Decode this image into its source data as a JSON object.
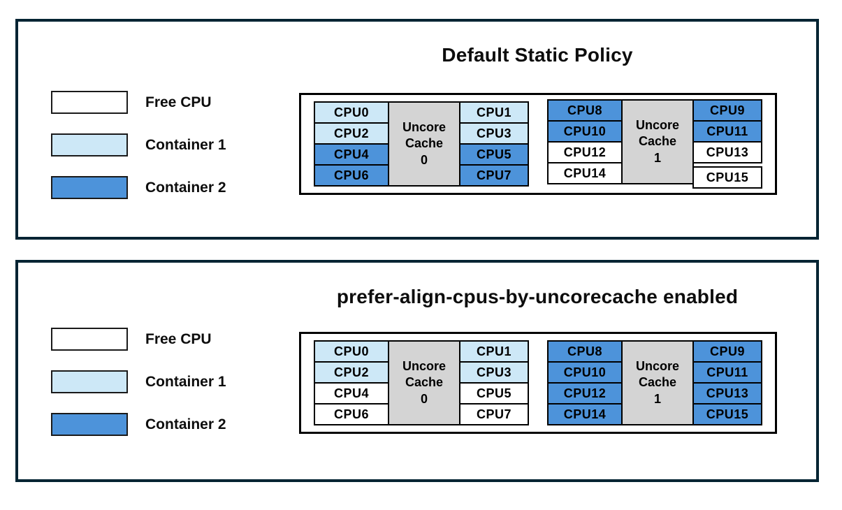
{
  "colors": {
    "free_cpu": "#ffffff",
    "container1": "#cde8f7",
    "container2": "#4d93da",
    "uncore_cache_fill": "#d4d4d4",
    "panel_border": "#042433",
    "cell_border": "#000000"
  },
  "legend": {
    "items": [
      {
        "label": "Free CPU",
        "color": "#ffffff"
      },
      {
        "label": "Container 1",
        "color": "#cde8f7"
      },
      {
        "label": "Container 2",
        "color": "#4d93da"
      }
    ]
  },
  "panels": [
    {
      "title": "Default Static Policy",
      "groups": [
        {
          "cache_label": [
            "Uncore",
            "Cache",
            "0"
          ],
          "left": [
            {
              "label": "CPU0",
              "state": "container-1",
              "color": "#cde8f7"
            },
            {
              "label": "CPU2",
              "state": "container-1",
              "color": "#cde8f7"
            },
            {
              "label": "CPU4",
              "state": "container-2",
              "color": "#4d93da"
            },
            {
              "label": "CPU6",
              "state": "container-2",
              "color": "#4d93da"
            }
          ],
          "right": [
            {
              "label": "CPU1",
              "state": "container-1",
              "color": "#cde8f7"
            },
            {
              "label": "CPU3",
              "state": "container-1",
              "color": "#cde8f7"
            },
            {
              "label": "CPU5",
              "state": "container-2",
              "color": "#4d93da"
            },
            {
              "label": "CPU7",
              "state": "container-2",
              "color": "#4d93da"
            }
          ]
        },
        {
          "cache_label": [
            "Uncore",
            "Cache",
            "1"
          ],
          "left": [
            {
              "label": "CPU8",
              "state": "container-2",
              "color": "#4d93da"
            },
            {
              "label": "CPU10",
              "state": "container-2",
              "color": "#4d93da"
            },
            {
              "label": "CPU12",
              "state": "free",
              "color": "#ffffff"
            },
            {
              "label": "CPU14",
              "state": "free",
              "color": "#ffffff"
            }
          ],
          "right": [
            {
              "label": "CPU9",
              "state": "container-2",
              "color": "#4d93da"
            },
            {
              "label": "CPU11",
              "state": "container-2",
              "color": "#4d93da"
            },
            {
              "label": "CPU13",
              "state": "free",
              "color": "#ffffff"
            },
            {
              "label": "CPU15",
              "state": "free",
              "color": "#ffffff"
            }
          ]
        }
      ]
    },
    {
      "title": "prefer-align-cpus-by-uncorecache enabled",
      "groups": [
        {
          "cache_label": [
            "Uncore",
            "Cache",
            "0"
          ],
          "left": [
            {
              "label": "CPU0",
              "state": "container-1",
              "color": "#cde8f7"
            },
            {
              "label": "CPU2",
              "state": "container-1",
              "color": "#cde8f7"
            },
            {
              "label": "CPU4",
              "state": "free",
              "color": "#ffffff"
            },
            {
              "label": "CPU6",
              "state": "free",
              "color": "#ffffff"
            }
          ],
          "right": [
            {
              "label": "CPU1",
              "state": "container-1",
              "color": "#cde8f7"
            },
            {
              "label": "CPU3",
              "state": "container-1",
              "color": "#cde8f7"
            },
            {
              "label": "CPU5",
              "state": "free",
              "color": "#ffffff"
            },
            {
              "label": "CPU7",
              "state": "free",
              "color": "#ffffff"
            }
          ]
        },
        {
          "cache_label": [
            "Uncore",
            "Cache",
            "1"
          ],
          "left": [
            {
              "label": "CPU8",
              "state": "container-2",
              "color": "#4d93da"
            },
            {
              "label": "CPU10",
              "state": "container-2",
              "color": "#4d93da"
            },
            {
              "label": "CPU12",
              "state": "container-2",
              "color": "#4d93da"
            },
            {
              "label": "CPU14",
              "state": "container-2",
              "color": "#4d93da"
            }
          ],
          "right": [
            {
              "label": "CPU9",
              "state": "container-2",
              "color": "#4d93da"
            },
            {
              "label": "CPU11",
              "state": "container-2",
              "color": "#4d93da"
            },
            {
              "label": "CPU13",
              "state": "container-2",
              "color": "#4d93da"
            },
            {
              "label": "CPU15",
              "state": "container-2",
              "color": "#4d93da"
            }
          ]
        }
      ]
    }
  ]
}
